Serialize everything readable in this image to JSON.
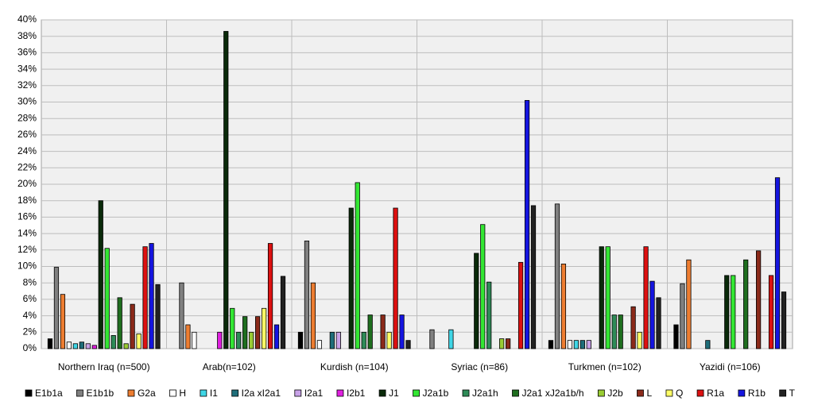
{
  "chart_data": {
    "type": "bar",
    "categories": [
      "Northern Iraq (n=500)",
      "Arab(n=102)",
      "Kurdish (n=104)",
      "Syriac (n=86)",
      "Turkmen (n=102)",
      "Yazidi (n=106)"
    ],
    "ylim": [
      0,
      40
    ],
    "yticks": [
      {
        "value": 0,
        "label": "0%"
      },
      {
        "value": 2,
        "label": "2%"
      },
      {
        "value": 4,
        "label": "4%"
      },
      {
        "value": 6,
        "label": "6%"
      },
      {
        "value": 8,
        "label": "8%"
      },
      {
        "value": 10,
        "label": "10%"
      },
      {
        "value": 12,
        "label": "12%"
      },
      {
        "value": 14,
        "label": "14%"
      },
      {
        "value": 16,
        "label": "16%"
      },
      {
        "value": 18,
        "label": "18%"
      },
      {
        "value": 20,
        "label": "20%"
      },
      {
        "value": 22,
        "label": "22%"
      },
      {
        "value": 24,
        "label": "24%"
      },
      {
        "value": 26,
        "label": "26%"
      },
      {
        "value": 28,
        "label": "28%"
      },
      {
        "value": 30,
        "label": "30%"
      },
      {
        "value": 32,
        "label": "32%"
      },
      {
        "value": 34,
        "label": "34%"
      },
      {
        "value": 36,
        "label": "36%"
      },
      {
        "value": 38,
        "label": "38%"
      },
      {
        "value": 40,
        "label": "40%"
      }
    ],
    "grid": true,
    "legend": "bottom",
    "series": [
      {
        "name": "E1b1a",
        "color": "#000000",
        "values": [
          1.2,
          0,
          2.0,
          0,
          1.0,
          2.9
        ]
      },
      {
        "name": "E1b1b",
        "color": "#808080",
        "values": [
          9.9,
          8.0,
          13.1,
          2.3,
          17.6,
          7.9
        ]
      },
      {
        "name": "G2a",
        "color": "#ed7d31",
        "values": [
          6.6,
          2.9,
          8.0,
          0,
          10.3,
          10.8
        ]
      },
      {
        "name": "H",
        "color": "#ffffff",
        "values": [
          0.8,
          2.0,
          1.0,
          0,
          1.0,
          0
        ]
      },
      {
        "name": "I1",
        "color": "#3fd6e6",
        "values": [
          0.6,
          0,
          0,
          2.3,
          1.0,
          0
        ]
      },
      {
        "name": "I2a xI2a1",
        "color": "#1f6e7a",
        "values": [
          0.8,
          0,
          2.0,
          0,
          1.0,
          1.0
        ]
      },
      {
        "name": "I2a1",
        "color": "#c8a2e8",
        "values": [
          0.6,
          0,
          2.0,
          0,
          1.0,
          0
        ]
      },
      {
        "name": "I2b1",
        "color": "#e020e0",
        "values": [
          0.4,
          2.0,
          0,
          0,
          0,
          0
        ]
      },
      {
        "name": "J1",
        "color": "#0a2a0a",
        "values": [
          18.0,
          38.6,
          17.1,
          11.6,
          12.4,
          8.9
        ]
      },
      {
        "name": "J2a1b",
        "color": "#33e633",
        "values": [
          12.2,
          4.9,
          20.2,
          15.1,
          12.4,
          8.9
        ]
      },
      {
        "name": "J2a1h",
        "color": "#2e8b57",
        "values": [
          1.6,
          2.0,
          2.0,
          8.1,
          4.1,
          0
        ]
      },
      {
        "name": "J2a1 xJ2a1b/h",
        "color": "#1f6e1f",
        "values": [
          6.2,
          3.9,
          4.1,
          0,
          4.1,
          10.8
        ]
      },
      {
        "name": "J2b",
        "color": "#99cc33",
        "values": [
          0.6,
          2.0,
          0,
          1.2,
          0,
          0
        ]
      },
      {
        "name": "L",
        "color": "#8b2a1a",
        "values": [
          5.4,
          3.9,
          4.1,
          1.2,
          5.1,
          11.9
        ]
      },
      {
        "name": "Q",
        "color": "#ffff66",
        "values": [
          1.8,
          4.9,
          2.0,
          0,
          2.0,
          0
        ]
      },
      {
        "name": "R1a",
        "color": "#dd1111",
        "values": [
          12.4,
          12.8,
          17.1,
          10.5,
          12.4,
          8.9
        ]
      },
      {
        "name": "R1b",
        "color": "#1515e0",
        "values": [
          12.8,
          2.9,
          4.1,
          30.2,
          8.2,
          20.8
        ]
      },
      {
        "name": "T",
        "color": "#222222",
        "values": [
          7.8,
          8.8,
          1.0,
          17.4,
          6.2,
          6.9
        ]
      }
    ]
  }
}
